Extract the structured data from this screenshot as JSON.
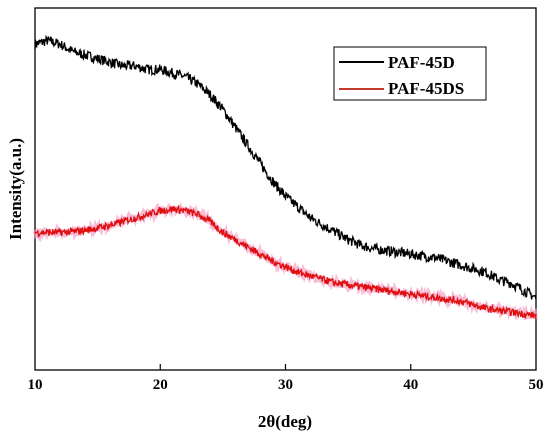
{
  "chart_data": {
    "type": "line",
    "title": "",
    "xlabel": "2θ(deg)",
    "ylabel": "Intensity(a.u.)",
    "xlim": [
      10,
      50
    ],
    "xticks": [
      "10",
      "20",
      "30",
      "40",
      "50"
    ],
    "y_tick_labels_shown": false,
    "grid": false,
    "legend_position": "top-right",
    "series": [
      {
        "name": "PAF-45D",
        "color": "#000000",
        "x": [
          10,
          11,
          12,
          13,
          14,
          15,
          16,
          17,
          18,
          19,
          20,
          21,
          22,
          23,
          24,
          25,
          26,
          27,
          28,
          29,
          30,
          31,
          32,
          33,
          34,
          35,
          36,
          37,
          38,
          39,
          40,
          41,
          42,
          43,
          44,
          45,
          46,
          47,
          48,
          49,
          50
        ],
        "y": [
          0.9,
          0.91,
          0.9,
          0.88,
          0.87,
          0.86,
          0.85,
          0.84,
          0.84,
          0.83,
          0.83,
          0.82,
          0.81,
          0.79,
          0.76,
          0.72,
          0.67,
          0.62,
          0.57,
          0.52,
          0.48,
          0.45,
          0.42,
          0.4,
          0.38,
          0.36,
          0.345,
          0.335,
          0.33,
          0.325,
          0.32,
          0.315,
          0.31,
          0.3,
          0.29,
          0.28,
          0.27,
          0.25,
          0.24,
          0.22,
          0.2
        ]
      },
      {
        "name": "PAF-45DS",
        "color": "#c0392b",
        "x": [
          10,
          11,
          12,
          13,
          14,
          15,
          16,
          17,
          18,
          19,
          20,
          21,
          22,
          23,
          24,
          25,
          26,
          27,
          28,
          29,
          30,
          31,
          32,
          33,
          34,
          35,
          36,
          37,
          38,
          39,
          40,
          41,
          42,
          43,
          44,
          45,
          46,
          47,
          48,
          49,
          50
        ],
        "y": [
          0.38,
          0.38,
          0.38,
          0.382,
          0.386,
          0.392,
          0.4,
          0.41,
          0.42,
          0.43,
          0.44,
          0.445,
          0.44,
          0.43,
          0.41,
          0.38,
          0.36,
          0.34,
          0.32,
          0.3,
          0.285,
          0.27,
          0.26,
          0.25,
          0.24,
          0.235,
          0.23,
          0.225,
          0.22,
          0.215,
          0.21,
          0.205,
          0.2,
          0.195,
          0.19,
          0.18,
          0.17,
          0.165,
          0.16,
          0.155,
          0.15
        ]
      }
    ]
  }
}
